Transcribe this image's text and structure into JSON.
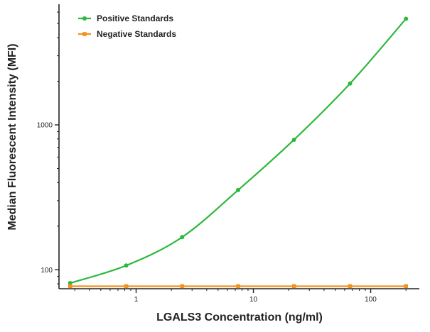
{
  "chart_data": {
    "type": "line",
    "title": "",
    "xlabel": "LGALS3 Concentration (ng/ml)",
    "ylabel": "Median Fluorescent Intensity (MFI)",
    "xscale": "log",
    "yscale": "log",
    "xlim": [
      0.22,
      260
    ],
    "ylim": [
      74,
      6800
    ],
    "xticks": [
      {
        "value": 1,
        "label": "1"
      },
      {
        "value": 10,
        "label": "10"
      },
      {
        "value": 100,
        "label": "100"
      }
    ],
    "yticks": [
      {
        "value": 100,
        "label": "100"
      },
      {
        "value": 1000,
        "label": "1000"
      }
    ],
    "grid": false,
    "legend_position": "top-left",
    "series": [
      {
        "name": "Positive Standards",
        "color": "#2db83d",
        "marker": "circle",
        "fit": "curve",
        "x": [
          0.274,
          0.823,
          2.47,
          7.41,
          22.2,
          66.7,
          200
        ],
        "y": [
          81,
          107,
          168,
          355,
          790,
          1930,
          5400
        ]
      },
      {
        "name": "Negative Standards",
        "color": "#f0921e",
        "marker": "square",
        "fit": "line",
        "x": [
          0.274,
          0.823,
          2.47,
          7.41,
          22.2,
          66.7,
          200
        ],
        "y": [
          77,
          77,
          77,
          77,
          77,
          77,
          77
        ]
      }
    ]
  }
}
